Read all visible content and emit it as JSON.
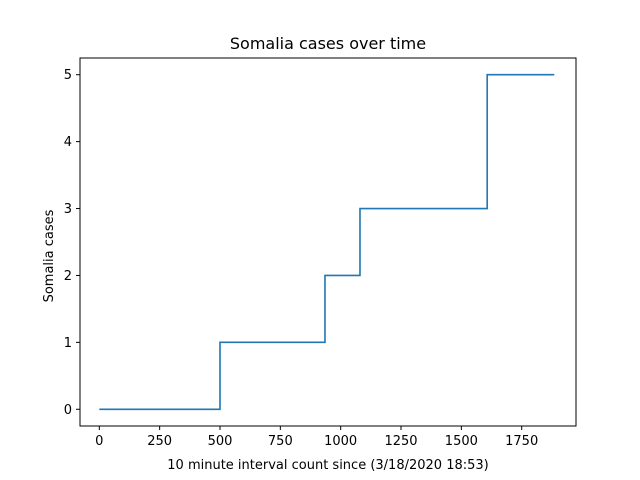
{
  "chart_data": {
    "type": "line",
    "step": true,
    "title": "Somalia cases over time",
    "xlabel": "10 minute interval count since (3/18/2020 18:53)",
    "ylabel": "Somalia cases",
    "xlim": [
      -80,
      1975
    ],
    "ylim": [
      -0.25,
      5.25
    ],
    "xticks": [
      0,
      250,
      500,
      750,
      1000,
      1250,
      1500,
      1750
    ],
    "yticks": [
      0,
      1,
      2,
      3,
      4,
      5
    ],
    "grid": false,
    "legend": "none",
    "series": [
      {
        "color": "#1f77b4",
        "points": [
          [
            0,
            0
          ],
          [
            500,
            0
          ],
          [
            500,
            1
          ],
          [
            935,
            1
          ],
          [
            935,
            2
          ],
          [
            1080,
            2
          ],
          [
            1080,
            3
          ],
          [
            1607,
            3
          ],
          [
            1607,
            5
          ],
          [
            1885,
            5
          ]
        ]
      }
    ]
  }
}
